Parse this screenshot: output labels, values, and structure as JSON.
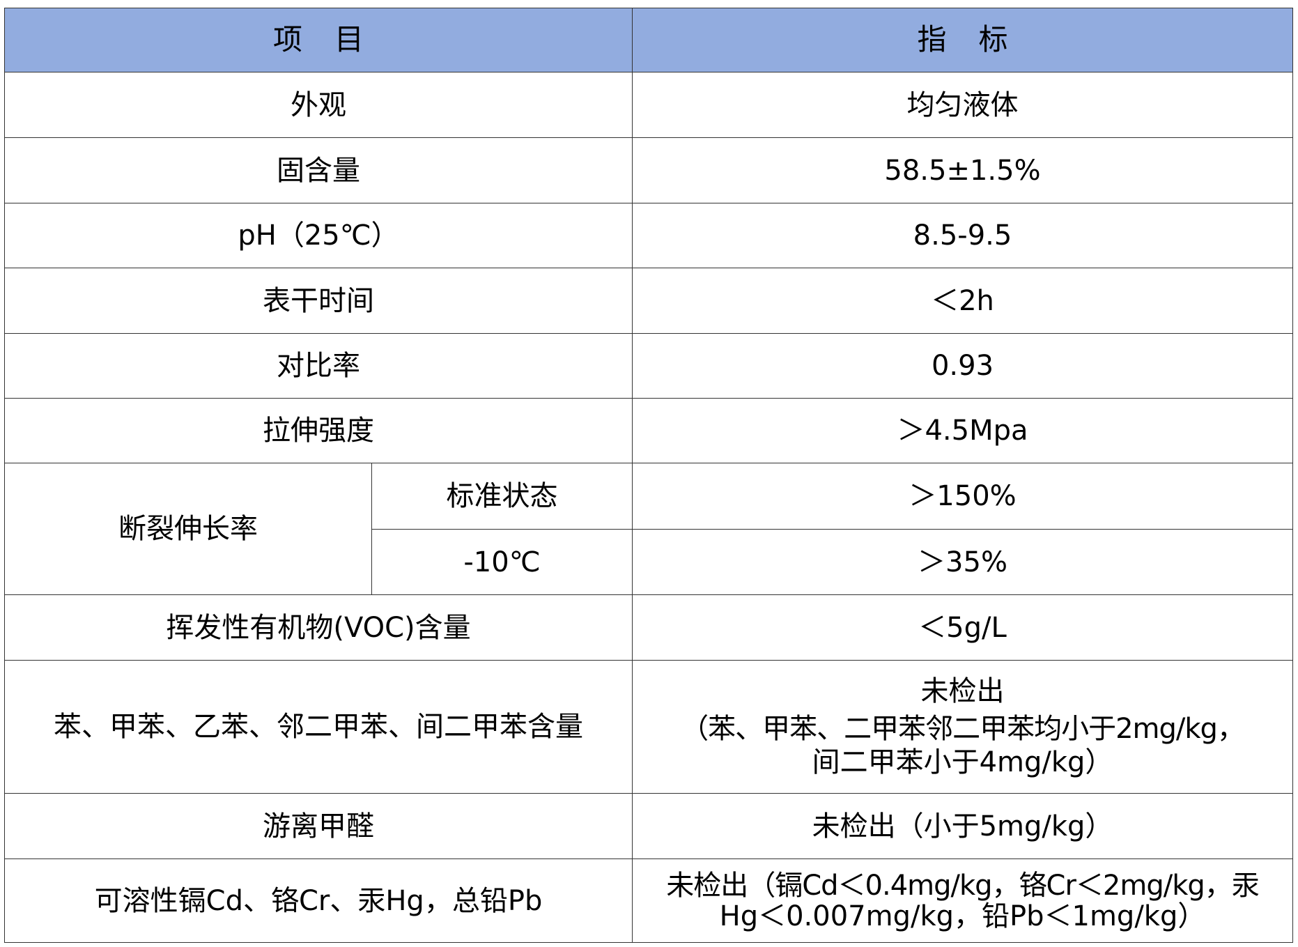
{
  "header": {
    "item": [
      "项",
      "目"
    ],
    "spec": [
      "指",
      "标"
    ]
  },
  "rows": [
    {
      "item": "外观",
      "spec": "均匀液体"
    },
    {
      "item": "固含量",
      "spec": "58.5±1.5%"
    },
    {
      "item": "pH（25℃）",
      "spec": "8.5-9.5"
    },
    {
      "item": "表干时间",
      "spec": "＜2h"
    },
    {
      "item": "对比率",
      "spec": "0.93"
    },
    {
      "item": "拉伸强度",
      "spec": "＞4.5Mpa"
    }
  ],
  "elongation": {
    "item": "断裂伸长率",
    "sub": [
      {
        "condition": "标准状态",
        "spec": "＞150%"
      },
      {
        "condition": "-10℃",
        "spec": "＞35%"
      }
    ]
  },
  "rows2": [
    {
      "item": "挥发性有机物(VOC)含量",
      "spec": [
        "＜5g/L"
      ]
    },
    {
      "item": "苯、甲苯、乙苯、邻二甲苯、间二甲苯含量",
      "spec": [
        "未检出",
        "（苯、甲苯、二甲苯邻二甲苯均小于2mg/kg，",
        "间二甲苯小于4mg/kg）"
      ]
    },
    {
      "item": "游离甲醛",
      "spec": [
        "未检出（小于5mg/kg）"
      ]
    },
    {
      "item": "可溶性镉Cd、铬Cr、汞Hg，总铅Pb",
      "spec": [
        "未检出（镉Cd＜0.4mg/kg，铬Cr＜2mg/kg，汞",
        "Hg＜0.007mg/kg，铅Pb＜1mg/kg）"
      ]
    }
  ],
  "colors": {
    "header_bg": "#92acdf",
    "border": "#333333"
  }
}
